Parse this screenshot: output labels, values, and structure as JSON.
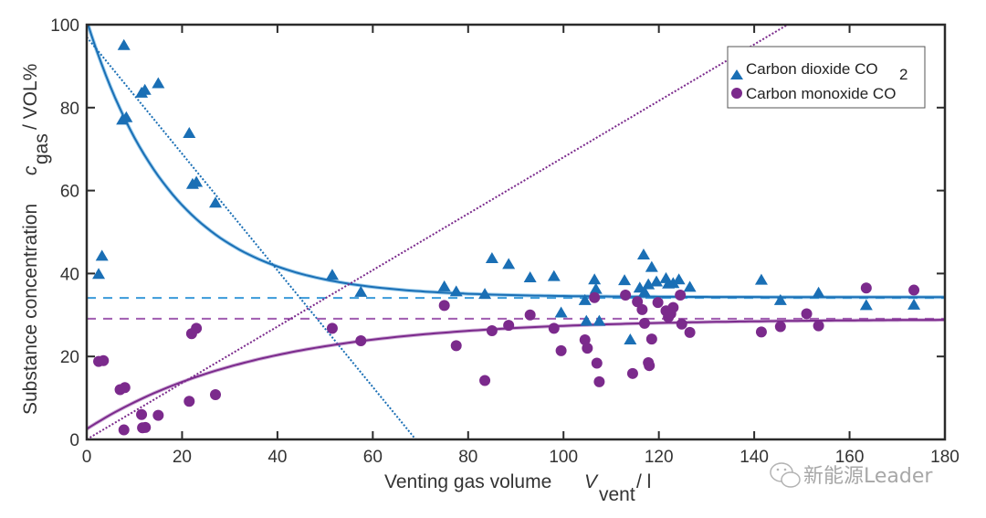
{
  "chart_data": {
    "type": "scatter",
    "title": "",
    "xlabel": "Venting gas volume",
    "xlabel_symbol": "V",
    "xlabel_subscript": "vent",
    "xlabel_unit": "/ l",
    "ylabel": "Substance concentration",
    "ylabel_symbol": "c",
    "ylabel_subscript": "gas",
    "ylabel_unit": "/ VOL%",
    "xlim": [
      0,
      180
    ],
    "ylim": [
      0,
      100
    ],
    "xticks": [
      0,
      20,
      40,
      60,
      80,
      100,
      120,
      140,
      160,
      180
    ],
    "yticks": [
      0,
      20,
      40,
      60,
      80,
      100
    ],
    "grid": false,
    "legend_position": "top-right",
    "series": [
      {
        "name": "Carbon dioxide CO",
        "name_subscript": "2",
        "marker": "triangle",
        "color": "#1a6fb5",
        "points": [
          [
            2.5,
            39.8
          ],
          [
            3.2,
            44.2
          ],
          [
            7.5,
            77
          ],
          [
            7.8,
            95
          ],
          [
            8.3,
            77.6
          ],
          [
            11.5,
            83.5
          ],
          [
            12.2,
            84.2
          ],
          [
            15,
            85.8
          ],
          [
            21.5,
            73.8
          ],
          [
            22.2,
            61.5
          ],
          [
            23,
            62
          ],
          [
            27,
            57
          ],
          [
            51.5,
            39.6
          ],
          [
            57.5,
            35.5
          ],
          [
            75,
            36.8
          ],
          [
            77.5,
            35.6
          ],
          [
            83.5,
            35
          ],
          [
            85,
            43.6
          ],
          [
            88.5,
            42.2
          ],
          [
            93,
            39
          ],
          [
            98,
            39.3
          ],
          [
            99.5,
            30.5
          ],
          [
            104.5,
            33.5
          ],
          [
            104.8,
            28.5
          ],
          [
            106.5,
            38.5
          ],
          [
            106.8,
            36.2
          ],
          [
            107.5,
            28.5
          ],
          [
            112.8,
            38.3
          ],
          [
            114,
            24
          ],
          [
            116,
            36.5
          ],
          [
            116.8,
            44.5
          ],
          [
            117,
            35.5
          ],
          [
            117.8,
            37.3
          ],
          [
            118.5,
            41.5
          ],
          [
            119.5,
            38
          ],
          [
            121.5,
            38.8
          ],
          [
            122,
            37.5
          ],
          [
            123,
            37.6
          ],
          [
            124.2,
            38.5
          ],
          [
            126.5,
            36.7
          ],
          [
            141.5,
            38.4
          ],
          [
            145.5,
            33.5
          ],
          [
            153.5,
            35.3
          ],
          [
            163.5,
            32.3
          ],
          [
            173.5,
            32.4
          ]
        ],
        "fit_curve": {
          "type": "exponential",
          "asymptote": 34.3,
          "start": 101,
          "decay_per_l": 0.055
        },
        "mean_line": 34.1,
        "linear_fit": {
          "x0": 0,
          "y0": 97,
          "x_intercept": 69
        }
      },
      {
        "name": "Carbon monoxide CO",
        "marker": "circle",
        "color": "#7b2a8c",
        "points": [
          [
            2.5,
            18.8
          ],
          [
            3.5,
            19
          ],
          [
            7,
            12
          ],
          [
            8,
            12.5
          ],
          [
            7.8,
            2.3
          ],
          [
            11.5,
            6
          ],
          [
            11.7,
            2.8
          ],
          [
            12.3,
            2.9
          ],
          [
            15,
            5.8
          ],
          [
            21.5,
            9.2
          ],
          [
            22,
            25.5
          ],
          [
            23,
            26.8
          ],
          [
            27,
            10.8
          ],
          [
            51.5,
            26.8
          ],
          [
            57.5,
            23.8
          ],
          [
            75,
            32.3
          ],
          [
            77.5,
            22.6
          ],
          [
            83.5,
            14.2
          ],
          [
            85,
            26.2
          ],
          [
            88.5,
            27.5
          ],
          [
            93,
            30
          ],
          [
            98,
            26.8
          ],
          [
            99.5,
            21.4
          ],
          [
            104.5,
            24
          ],
          [
            105,
            22
          ],
          [
            106.5,
            34.2
          ],
          [
            107,
            18.4
          ],
          [
            107.5,
            13.9
          ],
          [
            113,
            34.8
          ],
          [
            114.5,
            15.9
          ],
          [
            115.5,
            33.2
          ],
          [
            116.5,
            31.3
          ],
          [
            117,
            28
          ],
          [
            117.8,
            18.5
          ],
          [
            118,
            17.8
          ],
          [
            118.5,
            24.2
          ],
          [
            119.8,
            33
          ],
          [
            121.5,
            31
          ],
          [
            122,
            29.5
          ],
          [
            122.5,
            30.3
          ],
          [
            123,
            31.8
          ],
          [
            124.5,
            34.8
          ],
          [
            124.8,
            27.8
          ],
          [
            126.5,
            25.8
          ],
          [
            141.5,
            25.9
          ],
          [
            145.5,
            27.2
          ],
          [
            151,
            30.3
          ],
          [
            153.5,
            27.4
          ],
          [
            163.5,
            36.5
          ],
          [
            173.5,
            36
          ]
        ],
        "fit_curve": {
          "type": "exponential",
          "asymptote": 29,
          "start": 2.5,
          "decay_per_l": 0.028
        },
        "mean_line": 29.1,
        "linear_fit": {
          "x0": 0,
          "y0": 0,
          "x_at_100": 147
        }
      }
    ]
  },
  "watermark": {
    "text": "新能源Leader",
    "icon": "wechat-icon"
  }
}
